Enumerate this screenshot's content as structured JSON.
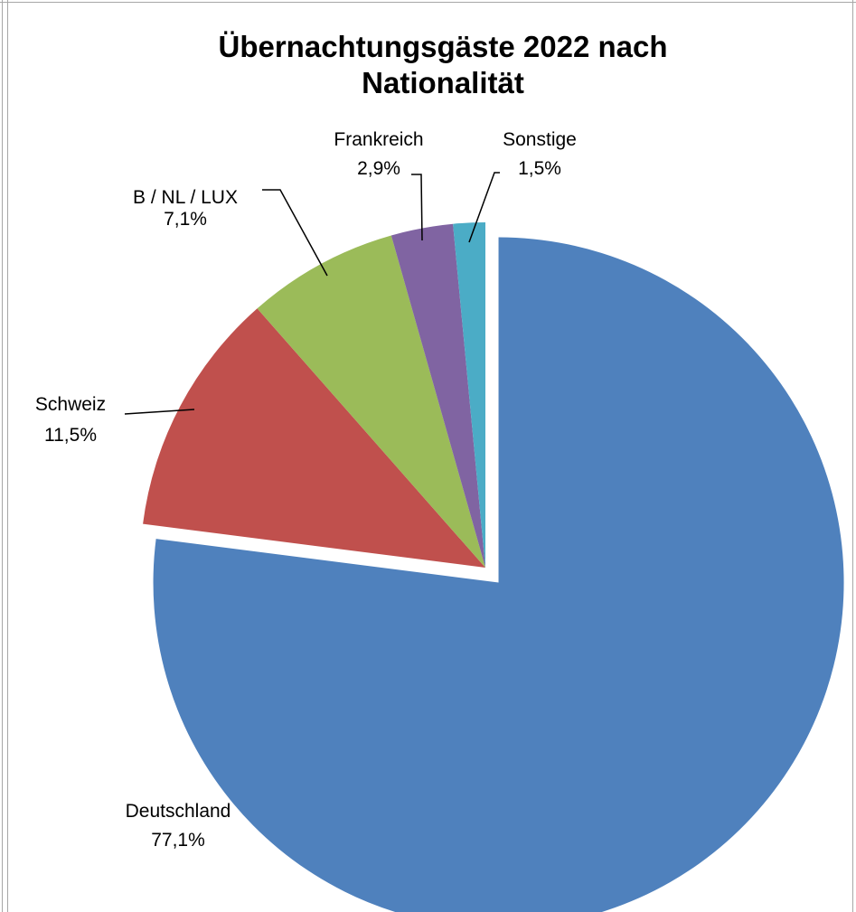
{
  "chart_data": {
    "type": "pie",
    "title": [
      "Übernachtungsgäste 2022 nach",
      "Nationalität"
    ],
    "slices": [
      {
        "name": "Deutschland",
        "label": "77,1%",
        "value": 77.1,
        "color": "#4f81bd",
        "exploded": true
      },
      {
        "name": "Schweiz",
        "label": "11,5%",
        "value": 11.5,
        "color": "#c0504d",
        "exploded": false
      },
      {
        "name": "B / NL / LUX",
        "label": "7,1%",
        "value": 7.1,
        "color": "#9bbb59",
        "exploded": false
      },
      {
        "name": "Frankreich",
        "label": "2,9%",
        "value": 2.9,
        "color": "#8064a2",
        "exploded": false
      },
      {
        "name": "Sonstige",
        "label": "1,5%",
        "value": 1.5,
        "color": "#4bacc6",
        "exploded": false
      }
    ]
  }
}
